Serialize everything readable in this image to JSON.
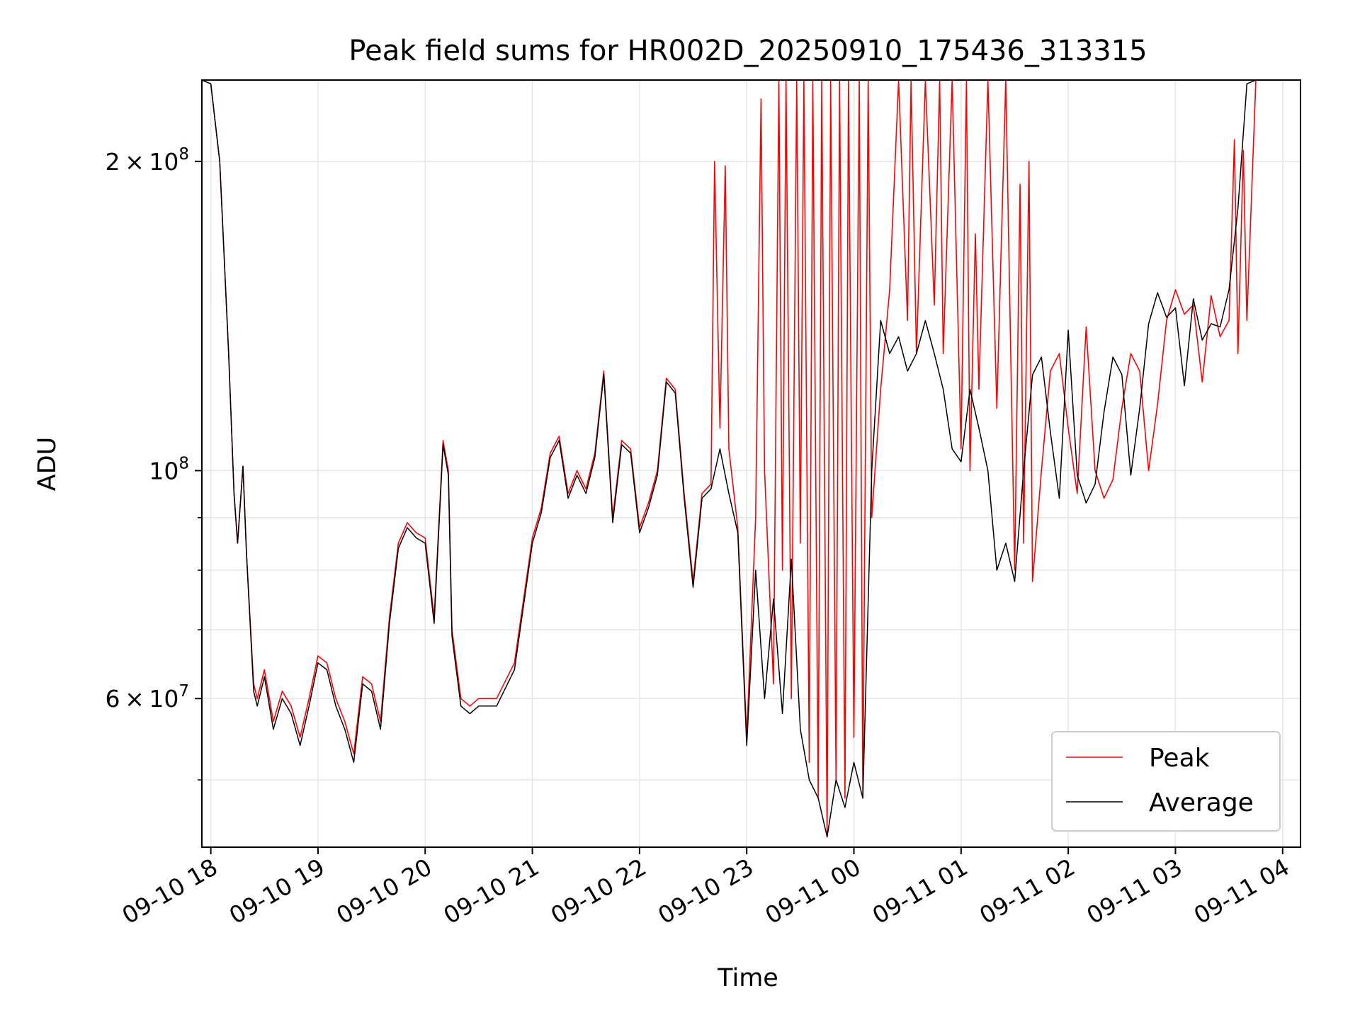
{
  "chart_data": {
    "type": "line",
    "title": "Peak field sums for HR002D_20250910_175436_313315",
    "xlabel": "Time",
    "ylabel": "ADU",
    "yscale": "log",
    "ylim": [
      43000000,
      240000000
    ],
    "xlim": [
      "09-10 17:55",
      "09-11 04:10"
    ],
    "grid": true,
    "legend_position": "lower-right",
    "x_ticks": [
      "09-10 18",
      "09-10 19",
      "09-10 20",
      "09-10 21",
      "09-10 22",
      "09-10 23",
      "09-11 00",
      "09-11 01",
      "09-11 02",
      "09-11 03",
      "09-11 04"
    ],
    "y_ticks": [
      {
        "value": 60000000,
        "base": "6",
        "exp": "7"
      },
      {
        "value": 100000000,
        "base": "",
        "exp": "8"
      },
      {
        "value": 200000000,
        "base": "2",
        "exp": "8"
      }
    ],
    "y_minor_ticks": [
      50000000,
      70000000,
      80000000,
      90000000
    ],
    "series": [
      {
        "name": "Peak",
        "color": "#ff0000",
        "x": [
          "09-10 17:55",
          "09-10 18:00",
          "09-10 18:05",
          "09-10 18:10",
          "09-10 18:13",
          "09-10 18:15",
          "09-10 18:18",
          "09-10 18:20",
          "09-10 18:24",
          "09-10 18:26",
          "09-10 18:30",
          "09-10 18:35",
          "09-10 18:40",
          "09-10 18:45",
          "09-10 18:50",
          "09-10 18:55",
          "09-10 19:00",
          "09-10 19:05",
          "09-10 19:10",
          "09-10 19:15",
          "09-10 19:20",
          "09-10 19:25",
          "09-10 19:30",
          "09-10 19:35",
          "09-10 19:40",
          "09-10 19:45",
          "09-10 19:50",
          "09-10 19:55",
          "09-10 20:00",
          "09-10 20:05",
          "09-10 20:10",
          "09-10 20:13",
          "09-10 20:15",
          "09-10 20:20",
          "09-10 20:25",
          "09-10 20:30",
          "09-10 20:40",
          "09-10 20:50",
          "09-10 21:00",
          "09-10 21:05",
          "09-10 21:10",
          "09-10 21:15",
          "09-10 21:20",
          "09-10 21:25",
          "09-10 21:30",
          "09-10 21:35",
          "09-10 21:40",
          "09-10 21:45",
          "09-10 21:50",
          "09-10 21:55",
          "09-10 22:00",
          "09-10 22:05",
          "09-10 22:10",
          "09-10 22:15",
          "09-10 22:20",
          "09-10 22:25",
          "09-10 22:30",
          "09-10 22:35",
          "09-10 22:40",
          "09-10 22:42",
          "09-10 22:45",
          "09-10 22:48",
          "09-10 22:50",
          "09-10 22:55",
          "09-10 23:00",
          "09-10 23:05",
          "09-10 23:08",
          "09-10 23:10",
          "09-10 23:15",
          "09-10 23:18",
          "09-10 23:20",
          "09-10 23:22",
          "09-10 23:25",
          "09-10 23:28",
          "09-10 23:30",
          "09-10 23:32",
          "09-10 23:35",
          "09-10 23:37",
          "09-10 23:40",
          "09-10 23:42",
          "09-10 23:45",
          "09-10 23:47",
          "09-10 23:50",
          "09-10 23:52",
          "09-10 23:55",
          "09-10 23:57",
          "09-11 00:00",
          "09-11 00:03",
          "09-11 00:05",
          "09-11 00:08",
          "09-11 00:10",
          "09-11 00:15",
          "09-11 00:20",
          "09-11 00:25",
          "09-11 00:30",
          "09-11 00:32",
          "09-11 00:35",
          "09-11 00:40",
          "09-11 00:45",
          "09-11 00:48",
          "09-11 00:50",
          "09-11 00:55",
          "09-11 01:00",
          "09-11 01:03",
          "09-11 01:05",
          "09-11 01:08",
          "09-11 01:10",
          "09-11 01:15",
          "09-11 01:20",
          "09-11 01:25",
          "09-11 01:30",
          "09-11 01:33",
          "09-11 01:35",
          "09-11 01:38",
          "09-11 01:40",
          "09-11 01:45",
          "09-11 01:50",
          "09-11 01:55",
          "09-11 02:00",
          "09-11 02:05",
          "09-11 02:10",
          "09-11 02:15",
          "09-11 02:20",
          "09-11 02:25",
          "09-11 02:30",
          "09-11 02:35",
          "09-11 02:40",
          "09-11 02:45",
          "09-11 02:50",
          "09-11 02:55",
          "09-11 03:00",
          "09-11 03:05",
          "09-11 03:10",
          "09-11 03:15",
          "09-11 03:20",
          "09-11 03:25",
          "09-11 03:30",
          "09-11 03:33",
          "09-11 03:35",
          "09-11 03:38",
          "09-11 03:40",
          "09-11 03:45",
          "09-11 03:50",
          "09-11 03:55",
          "09-11 04:00",
          "09-11 04:05",
          "09-11 04:10"
        ],
        "values": [
          240000000,
          238000000,
          200000000,
          130000000,
          95000000,
          85000000,
          101000000,
          83000000,
          62000000,
          60000000,
          64000000,
          57000000,
          61000000,
          59000000,
          55000000,
          60000000,
          66000000,
          65000000,
          60000000,
          57000000,
          53000000,
          63000000,
          62000000,
          57000000,
          72000000,
          85000000,
          89000000,
          87000000,
          86000000,
          72000000,
          107000000,
          100000000,
          70000000,
          60000000,
          59000000,
          60000000,
          60000000,
          65000000,
          86000000,
          92000000,
          104000000,
          108000000,
          95000000,
          100000000,
          96000000,
          104000000,
          125000000,
          90000000,
          107000000,
          105000000,
          88000000,
          93000000,
          100000000,
          123000000,
          120000000,
          95000000,
          78000000,
          95000000,
          97000000,
          200000000,
          110000000,
          198000000,
          105000000,
          88000000,
          55000000,
          90000000,
          230000000,
          100000000,
          62000000,
          240000000,
          80000000,
          240000000,
          60000000,
          240000000,
          85000000,
          240000000,
          52000000,
          240000000,
          48000000,
          240000000,
          44000000,
          240000000,
          50000000,
          240000000,
          48000000,
          240000000,
          55000000,
          240000000,
          48000000,
          240000000,
          90000000,
          120000000,
          150000000,
          240000000,
          140000000,
          240000000,
          130000000,
          240000000,
          145000000,
          240000000,
          130000000,
          240000000,
          105000000,
          240000000,
          100000000,
          170000000,
          120000000,
          240000000,
          115000000,
          240000000,
          80000000,
          190000000,
          85000000,
          200000000,
          78000000,
          100000000,
          125000000,
          130000000,
          110000000,
          95000000,
          138000000,
          100000000,
          94000000,
          98000000,
          115000000,
          130000000,
          125000000,
          100000000,
          116000000,
          140000000,
          150000000,
          142000000,
          145000000,
          122000000,
          148000000,
          135000000,
          140000000,
          210000000,
          130000000,
          205000000,
          140000000,
          240000000,
          240000000,
          240000000,
          240000000,
          240000000,
          240000000
        ]
      },
      {
        "name": "Average",
        "color": "#000000",
        "x": [
          "09-10 17:55",
          "09-10 18:00",
          "09-10 18:05",
          "09-10 18:10",
          "09-10 18:13",
          "09-10 18:15",
          "09-10 18:18",
          "09-10 18:20",
          "09-10 18:24",
          "09-10 18:26",
          "09-10 18:30",
          "09-10 18:35",
          "09-10 18:40",
          "09-10 18:45",
          "09-10 18:50",
          "09-10 18:55",
          "09-10 19:00",
          "09-10 19:05",
          "09-10 19:10",
          "09-10 19:15",
          "09-10 19:20",
          "09-10 19:25",
          "09-10 19:30",
          "09-10 19:35",
          "09-10 19:40",
          "09-10 19:45",
          "09-10 19:50",
          "09-10 19:55",
          "09-10 20:00",
          "09-10 20:05",
          "09-10 20:10",
          "09-10 20:13",
          "09-10 20:15",
          "09-10 20:20",
          "09-10 20:25",
          "09-10 20:30",
          "09-10 20:40",
          "09-10 20:50",
          "09-10 21:00",
          "09-10 21:05",
          "09-10 21:10",
          "09-10 21:15",
          "09-10 21:20",
          "09-10 21:25",
          "09-10 21:30",
          "09-10 21:35",
          "09-10 21:40",
          "09-10 21:45",
          "09-10 21:50",
          "09-10 21:55",
          "09-10 22:00",
          "09-10 22:05",
          "09-10 22:10",
          "09-10 22:15",
          "09-10 22:20",
          "09-10 22:25",
          "09-10 22:30",
          "09-10 22:35",
          "09-10 22:40",
          "09-10 22:45",
          "09-10 22:50",
          "09-10 22:55",
          "09-10 23:00",
          "09-10 23:05",
          "09-10 23:10",
          "09-10 23:15",
          "09-10 23:20",
          "09-10 23:25",
          "09-10 23:30",
          "09-10 23:35",
          "09-10 23:40",
          "09-10 23:45",
          "09-10 23:50",
          "09-10 23:55",
          "09-11 00:00",
          "09-11 00:05",
          "09-11 00:10",
          "09-11 00:15",
          "09-11 00:20",
          "09-11 00:25",
          "09-11 00:30",
          "09-11 00:35",
          "09-11 00:40",
          "09-11 00:45",
          "09-11 00:50",
          "09-11 00:55",
          "09-11 01:00",
          "09-11 01:05",
          "09-11 01:10",
          "09-11 01:15",
          "09-11 01:20",
          "09-11 01:25",
          "09-11 01:30",
          "09-11 01:35",
          "09-11 01:40",
          "09-11 01:45",
          "09-11 01:50",
          "09-11 01:55",
          "09-11 02:00",
          "09-11 02:05",
          "09-11 02:10",
          "09-11 02:15",
          "09-11 02:20",
          "09-11 02:25",
          "09-11 02:30",
          "09-11 02:35",
          "09-11 02:40",
          "09-11 02:45",
          "09-11 02:50",
          "09-11 02:55",
          "09-11 03:00",
          "09-11 03:05",
          "09-11 03:10",
          "09-11 03:15",
          "09-11 03:20",
          "09-11 03:25",
          "09-11 03:30",
          "09-11 03:35",
          "09-11 03:40",
          "09-11 03:45",
          "09-11 03:50",
          "09-11 03:55",
          "09-11 04:00",
          "09-11 04:05",
          "09-11 04:10"
        ],
        "values": [
          240000000,
          238000000,
          200000000,
          130000000,
          95000000,
          85000000,
          101000000,
          83000000,
          61000000,
          59000000,
          63000000,
          56000000,
          60000000,
          58000000,
          54000000,
          59000000,
          65000000,
          64000000,
          59000000,
          56000000,
          52000000,
          62000000,
          61000000,
          56000000,
          71000000,
          84000000,
          88000000,
          86000000,
          85000000,
          71000000,
          106000000,
          99000000,
          69000000,
          59000000,
          58000000,
          59000000,
          59000000,
          64000000,
          85000000,
          91000000,
          103000000,
          107000000,
          94000000,
          99000000,
          95000000,
          103000000,
          124000000,
          89000000,
          106000000,
          104000000,
          87000000,
          92000000,
          99000000,
          122000000,
          119000000,
          94000000,
          77000000,
          94000000,
          96000000,
          105000000,
          95000000,
          87000000,
          54000000,
          80000000,
          60000000,
          75000000,
          58000000,
          82000000,
          56000000,
          50000000,
          48000000,
          44000000,
          50000000,
          47000000,
          52000000,
          48000000,
          100000000,
          140000000,
          130000000,
          135000000,
          125000000,
          130000000,
          140000000,
          130000000,
          120000000,
          105000000,
          102000000,
          120000000,
          110000000,
          100000000,
          80000000,
          85000000,
          78000000,
          100000000,
          124000000,
          129000000,
          109000000,
          94000000,
          137000000,
          99000000,
          93000000,
          97000000,
          114000000,
          129000000,
          124000000,
          99000000,
          115000000,
          139000000,
          149000000,
          141000000,
          144000000,
          121000000,
          147000000,
          134000000,
          139000000,
          138000000,
          150000000,
          180000000,
          238000000,
          240000000,
          240000000,
          240000000,
          240000000,
          240000000,
          240000000
        ]
      }
    ]
  }
}
